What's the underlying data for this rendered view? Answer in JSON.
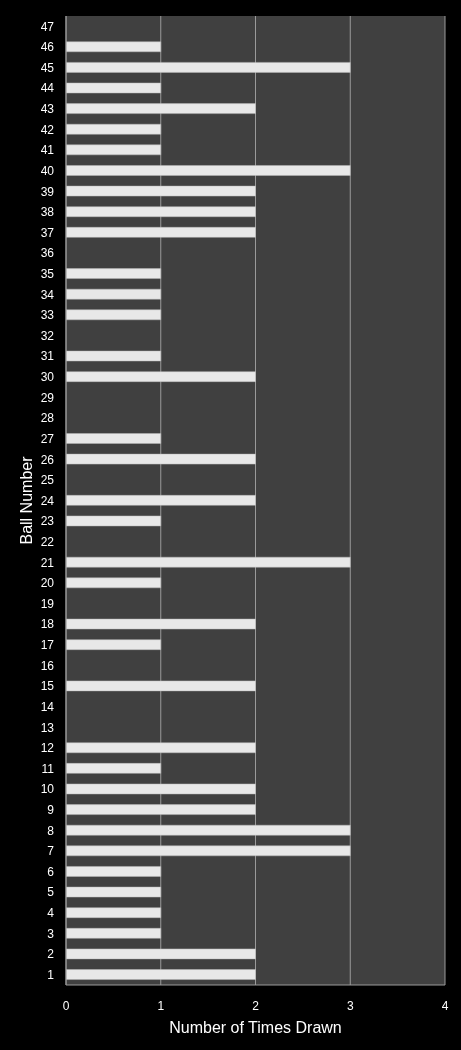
{
  "chart_data": {
    "type": "bar",
    "orientation": "horizontal",
    "categories": [
      "47",
      "46",
      "45",
      "44",
      "43",
      "42",
      "41",
      "40",
      "39",
      "38",
      "37",
      "36",
      "35",
      "34",
      "33",
      "32",
      "31",
      "30",
      "29",
      "28",
      "27",
      "26",
      "25",
      "24",
      "23",
      "22",
      "21",
      "20",
      "19",
      "18",
      "17",
      "16",
      "15",
      "14",
      "13",
      "12",
      "11",
      "10",
      "9",
      "8",
      "7",
      "6",
      "5",
      "4",
      "3",
      "2",
      "1"
    ],
    "values": [
      0,
      1,
      3,
      1,
      2,
      1,
      1,
      3,
      2,
      2,
      2,
      0,
      1,
      1,
      1,
      0,
      1,
      2,
      0,
      0,
      1,
      2,
      0,
      2,
      1,
      0,
      3,
      1,
      0,
      2,
      1,
      0,
      2,
      0,
      0,
      2,
      1,
      2,
      2,
      3,
      3,
      1,
      1,
      1,
      1,
      2,
      2
    ],
    "color": "#e8e8e8",
    "xlabel": "Number of Times Drawn",
    "ylabel": "Ball Number",
    "xlim": [
      0,
      4
    ],
    "xticks": [
      0,
      1,
      2,
      3,
      4
    ],
    "grid": "x"
  }
}
